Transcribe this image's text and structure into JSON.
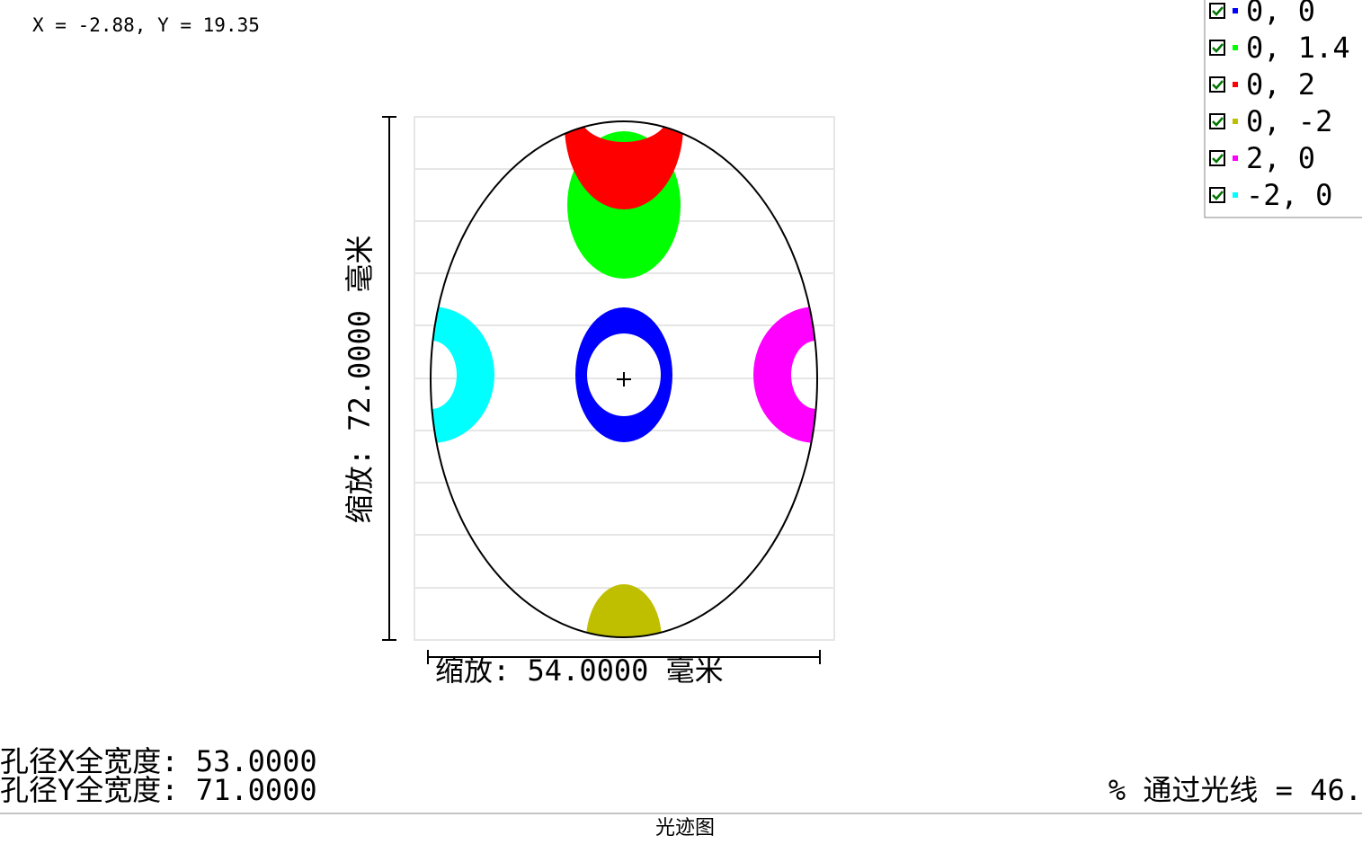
{
  "cursor": "X = -2.88, Y = 19.35",
  "legend": [
    {
      "label": "0, 0",
      "color": "#0000ff"
    },
    {
      "label": "0, 1.4",
      "color": "#00ff00"
    },
    {
      "label": "0, 2",
      "color": "#ff0000"
    },
    {
      "label": "0, -2",
      "color": "#bfbf00"
    },
    {
      "label": "2, 0",
      "color": "#ff00ff"
    },
    {
      "label": "-2, 0",
      "color": "#00ffff"
    }
  ],
  "y_scale": "缩放: 72.0000 毫米",
  "x_scale": "缩放: 54.0000 毫米",
  "aperture_x": "孔径X全宽度: 53.0000",
  "aperture_y": "孔径Y全宽度: 71.0000",
  "rays_through": "% 通过光线 = 46.",
  "footer_title": "光迹图"
}
